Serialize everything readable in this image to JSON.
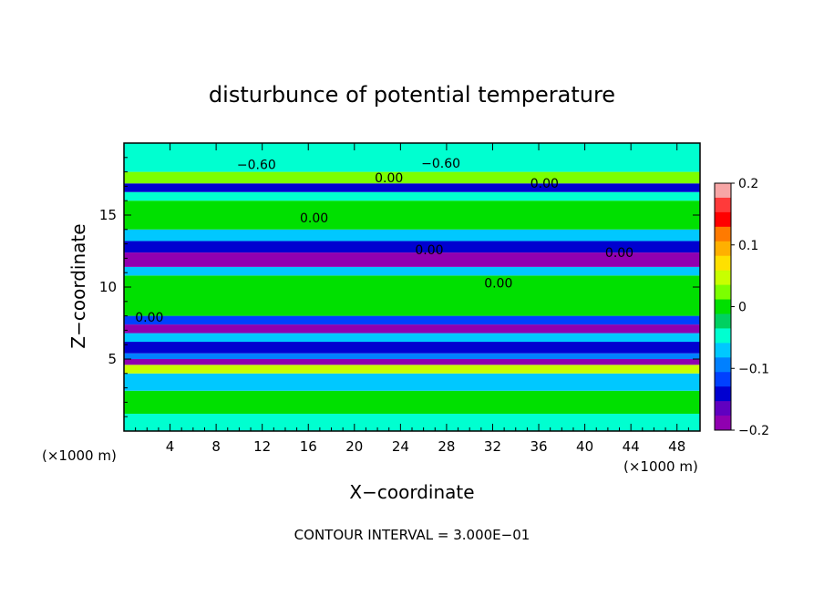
{
  "chart_data": {
    "type": "heatmap",
    "title": "disturbunce of potential temperature",
    "xlabel": "X−coordinate",
    "ylabel": "Z−coordinate",
    "x_units": "(×1000 m)",
    "y_units": "(×1000 m)",
    "x_ticks": [
      4,
      8,
      12,
      16,
      20,
      24,
      28,
      32,
      36,
      40,
      44,
      48
    ],
    "y_ticks": [
      5,
      10,
      15
    ],
    "xlim": [
      0,
      50
    ],
    "ylim": [
      0,
      20
    ],
    "footer": "CONTOUR INTERVAL = 3.000E−01",
    "colorbar": {
      "range": [
        -0.2,
        0.2
      ],
      "ticks": [
        "0.2",
        "0.1",
        "0",
        "−0.1",
        "−0.2"
      ],
      "colors": [
        "#f7a6a6",
        "#ff3a3a",
        "#ff0000",
        "#ff7a00",
        "#ffb000",
        "#ffe000",
        "#c8ff00",
        "#7cff00",
        "#00e000",
        "#00d060",
        "#00ffd0",
        "#00c8ff",
        "#0080ff",
        "#0040ff",
        "#0000d0",
        "#6000c0",
        "#9000b0"
      ]
    },
    "bands": [
      {
        "z": [
          0.0,
          1.2
        ],
        "value": -0.05
      },
      {
        "z": [
          1.2,
          2.8
        ],
        "value": 0.01
      },
      {
        "z": [
          2.8,
          4.0
        ],
        "value": -0.08
      },
      {
        "z": [
          4.0,
          4.6
        ],
        "value": 0.05
      },
      {
        "z": [
          4.6,
          5.0
        ],
        "value": -0.2
      },
      {
        "z": [
          5.0,
          5.4
        ],
        "value": -0.1
      },
      {
        "z": [
          5.4,
          6.2
        ],
        "value": -0.14
      },
      {
        "z": [
          6.2,
          6.8
        ],
        "value": -0.07
      },
      {
        "z": [
          6.8,
          7.4
        ],
        "value": -0.2
      },
      {
        "z": [
          7.4,
          8.0
        ],
        "value": -0.12
      },
      {
        "z": [
          8.0,
          10.8
        ],
        "value": 0.0
      },
      {
        "z": [
          10.8,
          11.4
        ],
        "value": -0.06
      },
      {
        "z": [
          11.4,
          12.4
        ],
        "value": -0.2
      },
      {
        "z": [
          12.4,
          13.2
        ],
        "value": -0.14
      },
      {
        "z": [
          13.2,
          14.0
        ],
        "value": -0.06
      },
      {
        "z": [
          14.0,
          16.0
        ],
        "value": 0.0
      },
      {
        "z": [
          16.0,
          16.6
        ],
        "value": -0.04
      },
      {
        "z": [
          16.6,
          17.2
        ],
        "value": -0.14
      },
      {
        "z": [
          17.2,
          18.0
        ],
        "value": 0.02
      },
      {
        "z": [
          18.0,
          20.0
        ],
        "value": -0.04
      }
    ],
    "contour_labels": [
      {
        "x": 11.5,
        "z": 18.5,
        "text": "−0.60"
      },
      {
        "x": 27.5,
        "z": 18.6,
        "text": "−0.60"
      },
      {
        "x": 23.0,
        "z": 17.6,
        "text": "0.00"
      },
      {
        "x": 36.5,
        "z": 17.2,
        "text": "0.00"
      },
      {
        "x": 16.5,
        "z": 14.8,
        "text": "0.00"
      },
      {
        "x": 26.5,
        "z": 12.6,
        "text": "0.00"
      },
      {
        "x": 43.0,
        "z": 12.4,
        "text": "0.00"
      },
      {
        "x": 32.5,
        "z": 10.3,
        "text": "0.00"
      },
      {
        "x": 2.2,
        "z": 7.9,
        "text": "0.00"
      }
    ]
  }
}
